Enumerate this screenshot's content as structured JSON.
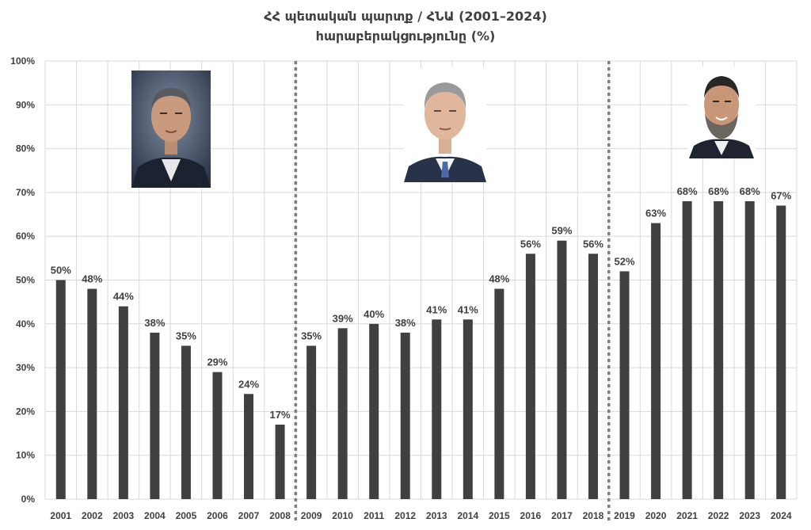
{
  "chart_data": {
    "type": "bar",
    "title": "ՀՀ պետական պարտք / ՀՆԱ (2001–2024)",
    "subtitle": "հարաբերակցությունը (%)",
    "xlabel": "",
    "ylabel": "",
    "ylim": [
      0,
      100
    ],
    "y_ticks": [
      "0%",
      "10%",
      "20%",
      "30%",
      "40%",
      "50%",
      "60%",
      "70%",
      "80%",
      "90%",
      "100%"
    ],
    "categories": [
      "2001",
      "2002",
      "2003",
      "2004",
      "2005",
      "2006",
      "2007",
      "2008",
      "2009",
      "2010",
      "2011",
      "2012",
      "2013",
      "2014",
      "2015",
      "2016",
      "2017",
      "2018",
      "2019",
      "2020",
      "2021",
      "2022",
      "2023",
      "2024"
    ],
    "values": [
      50,
      48,
      44,
      38,
      35,
      29,
      24,
      17,
      35,
      39,
      40,
      38,
      41,
      41,
      48,
      56,
      59,
      56,
      52,
      63,
      68,
      68,
      68,
      67
    ],
    "value_labels": [
      "50%",
      "48%",
      "44%",
      "38%",
      "35%",
      "29%",
      "24%",
      "17%",
      "35%",
      "39%",
      "40%",
      "38%",
      "41%",
      "41%",
      "48%",
      "56%",
      "59%",
      "56%",
      "52%",
      "63%",
      "68%",
      "68%",
      "68%",
      "67%"
    ],
    "period_separators_after": [
      "2008",
      "2018"
    ],
    "grid": true,
    "bar_color": "#404040",
    "grid_color": "#d9d9d9",
    "separator_color": "#7f7f7f",
    "photos": [
      "portrait-photo",
      "portrait-photo",
      "portrait-photo"
    ]
  }
}
